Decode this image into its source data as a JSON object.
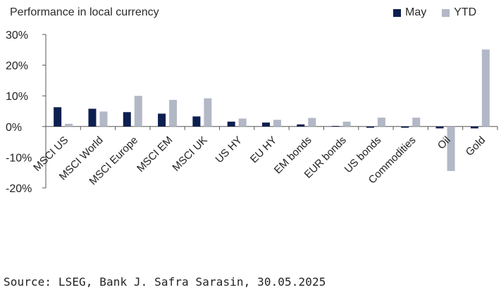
{
  "chart_data": {
    "type": "bar",
    "title": "Performance in local currency",
    "categories": [
      "MSCI US",
      "MSCI World",
      "MSCI Europe",
      "MSCI EM",
      "MSCI UK",
      "US HY",
      "EU HY",
      "EM bonds",
      "EUR bonds",
      "US bonds",
      "Commodities",
      "Oil",
      "Gold"
    ],
    "series": [
      {
        "name": "May",
        "color": "#0d1f4f",
        "values": [
          6.3,
          5.8,
          4.7,
          4.2,
          3.3,
          1.6,
          1.3,
          0.7,
          0.2,
          -0.4,
          -0.4,
          -0.6,
          -0.6
        ]
      },
      {
        "name": "YTD",
        "color": "#b3b8c6",
        "values": [
          0.9,
          4.9,
          10.0,
          8.7,
          9.2,
          2.6,
          2.2,
          2.8,
          1.6,
          2.9,
          2.9,
          -14.5,
          25.1
        ]
      }
    ],
    "ylim": [
      -20,
      30
    ],
    "yticks": [
      30,
      20,
      10,
      0,
      -10,
      -20
    ],
    "ytick_labels": [
      "30%",
      "20%",
      "10%",
      "0%",
      "-10%",
      "-20%"
    ],
    "legend_position": "top-right",
    "grid": false
  },
  "source": "Source: LSEG, Bank J. Safra Sarasin, 30.05.2025"
}
